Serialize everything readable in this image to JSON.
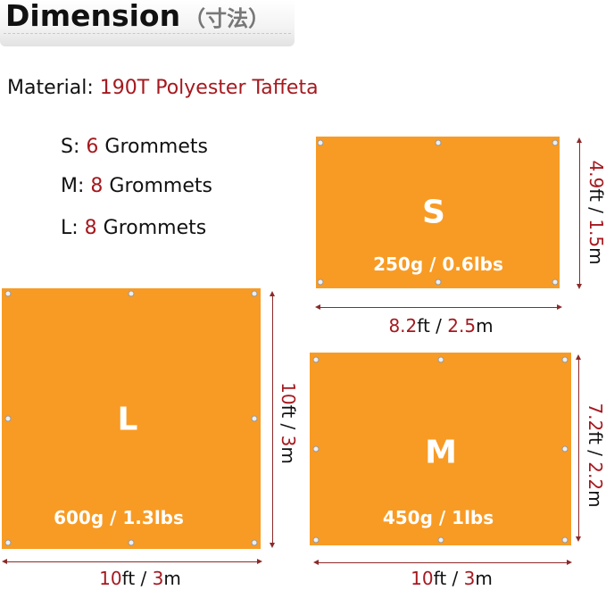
{
  "header": {
    "title": "Dimension",
    "subtitle": "（寸法）"
  },
  "material": {
    "label": "Material:",
    "value": "190T Polyester Taffeta"
  },
  "grommets": [
    {
      "size": "S:",
      "count": "6",
      "label": "Grommets"
    },
    {
      "size": "M:",
      "count": "8",
      "label": "Grommets"
    },
    {
      "size": "L:",
      "count": "8",
      "label": "Grommets"
    }
  ],
  "tarps": {
    "s": {
      "letter": "S",
      "weight": "250g / 0.6lbs",
      "width": [
        "8.2",
        "ft / ",
        "2.5",
        "m"
      ],
      "height": [
        "4.9",
        "ft / ",
        "1.5",
        "m"
      ]
    },
    "l": {
      "letter": "L",
      "weight": "600g / 1.3lbs",
      "width": [
        "10",
        "ft / ",
        "3",
        "m"
      ],
      "height": [
        "10",
        "ft / ",
        "3",
        "m"
      ]
    },
    "m": {
      "letter": "M",
      "weight": "450g / 1lbs",
      "width": [
        "10",
        "ft / ",
        "3",
        "m"
      ],
      "height": [
        "7.2",
        "ft / ",
        "2.2",
        "m"
      ]
    }
  },
  "colors": {
    "tarp": "#f89b24",
    "accent": "#a5191f"
  }
}
